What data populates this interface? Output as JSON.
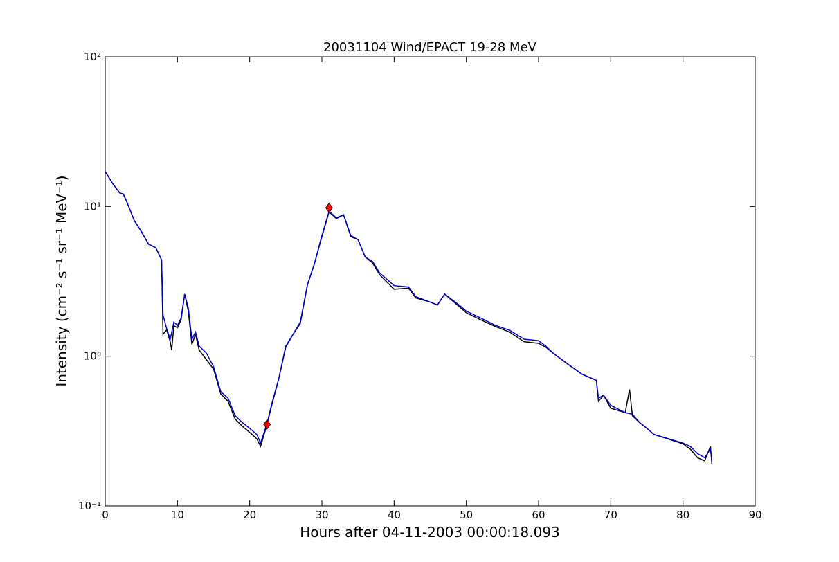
{
  "chart_data": {
    "type": "line",
    "title": "20031104 Wind/EPACT 19-28 MeV",
    "xlabel": "Hours after 04-11-2003 00:00:18.093",
    "ylabel": "Intensity (cm⁻² s⁻¹ sr⁻¹ MeV⁻¹)",
    "log_y": true,
    "xlim": [
      0,
      90
    ],
    "xticks": [
      0,
      10,
      20,
      30,
      40,
      50,
      60,
      70,
      80,
      90
    ],
    "ylim": [
      0.1,
      100
    ],
    "yticks": [
      {
        "value": 0.1,
        "label": "10⁻¹"
      },
      {
        "value": 1,
        "label": "10⁰"
      },
      {
        "value": 10,
        "label": "10¹"
      },
      {
        "value": 100,
        "label": "10²"
      }
    ],
    "series": [
      {
        "color": "#000000",
        "x": [
          0,
          1,
          2,
          2.5,
          3,
          4,
          5,
          6,
          7,
          7.8,
          8.0,
          8.5,
          9,
          9.2,
          9.5,
          10,
          10.5,
          11,
          11.5,
          12,
          12.5,
          13,
          14,
          15,
          16,
          17,
          18,
          19,
          20,
          21,
          21.5,
          22,
          22.4,
          23,
          24,
          25,
          26,
          27,
          28,
          29,
          30,
          31,
          32,
          33,
          34,
          35,
          36,
          37,
          38,
          40,
          42,
          43,
          45,
          46,
          47,
          49,
          50,
          52,
          54,
          56,
          58,
          60,
          61,
          62,
          64,
          66,
          68,
          68.3,
          69,
          70,
          72,
          72.6,
          73,
          74,
          75,
          76,
          80,
          81,
          82,
          83,
          83.8,
          84
        ],
        "values": [
          17.1,
          14.3,
          12.3,
          12.1,
          10.7,
          8.1,
          6.8,
          5.6,
          5.3,
          4.4,
          1.4,
          1.5,
          1.25,
          1.1,
          1.6,
          1.55,
          1.75,
          2.6,
          2.0,
          1.2,
          1.4,
          1.1,
          0.95,
          0.82,
          0.56,
          0.5,
          0.38,
          0.34,
          0.31,
          0.28,
          0.25,
          0.3,
          0.35,
          0.46,
          0.7,
          1.15,
          1.4,
          1.65,
          3.0,
          4.2,
          6.3,
          9.2,
          8.3,
          8.8,
          6.3,
          6.0,
          4.6,
          4.2,
          3.5,
          2.8,
          2.85,
          2.45,
          2.3,
          2.2,
          2.6,
          2.15,
          1.95,
          1.75,
          1.58,
          1.45,
          1.25,
          1.22,
          1.15,
          1.05,
          0.89,
          0.76,
          0.69,
          0.5,
          0.55,
          0.45,
          0.42,
          0.6,
          0.4,
          0.36,
          0.33,
          0.3,
          0.26,
          0.24,
          0.21,
          0.2,
          0.25,
          0.19
        ]
      },
      {
        "color": "#0000cc",
        "x": [
          0,
          1,
          2,
          2.5,
          3,
          4,
          5,
          6,
          7,
          7.8,
          8.0,
          8.5,
          9,
          9.5,
          10,
          10.5,
          11,
          11.5,
          12,
          12.5,
          13,
          14,
          15,
          16,
          17,
          18,
          19,
          20,
          21,
          21.5,
          22,
          22.4,
          23,
          24,
          25,
          26,
          27,
          28,
          29,
          30,
          31,
          32,
          33,
          34,
          35,
          36,
          37,
          38,
          40,
          42,
          43,
          45,
          46,
          47,
          49,
          50,
          52,
          54,
          56,
          58,
          60,
          61,
          62,
          64,
          66,
          68,
          68.3,
          69,
          70,
          72,
          73,
          74,
          75,
          76,
          80,
          81,
          82,
          83,
          83.8,
          84
        ],
        "values": [
          17.1,
          14.3,
          12.3,
          12.1,
          10.7,
          8.1,
          6.8,
          5.6,
          5.3,
          4.4,
          1.89,
          1.53,
          1.3,
          1.69,
          1.61,
          1.8,
          2.6,
          2.1,
          1.3,
          1.45,
          1.17,
          1.05,
          0.85,
          0.58,
          0.525,
          0.4,
          0.36,
          0.33,
          0.3,
          0.263,
          0.31,
          0.355,
          0.47,
          0.7,
          1.17,
          1.4,
          1.69,
          3.0,
          4.2,
          6.4,
          9.3,
          8.4,
          8.8,
          6.4,
          6.0,
          4.6,
          4.3,
          3.6,
          2.96,
          2.9,
          2.5,
          2.3,
          2.2,
          2.6,
          2.2,
          2.0,
          1.8,
          1.61,
          1.49,
          1.3,
          1.27,
          1.17,
          1.05,
          0.89,
          0.76,
          0.69,
          0.525,
          0.55,
          0.47,
          0.42,
          0.41,
          0.36,
          0.33,
          0.3,
          0.263,
          0.25,
          0.224,
          0.21,
          0.24,
          0.2
        ]
      }
    ],
    "markers": {
      "color": "#ff0000",
      "x": [
        22.4,
        31
      ],
      "values": [
        0.35,
        9.8
      ]
    }
  }
}
